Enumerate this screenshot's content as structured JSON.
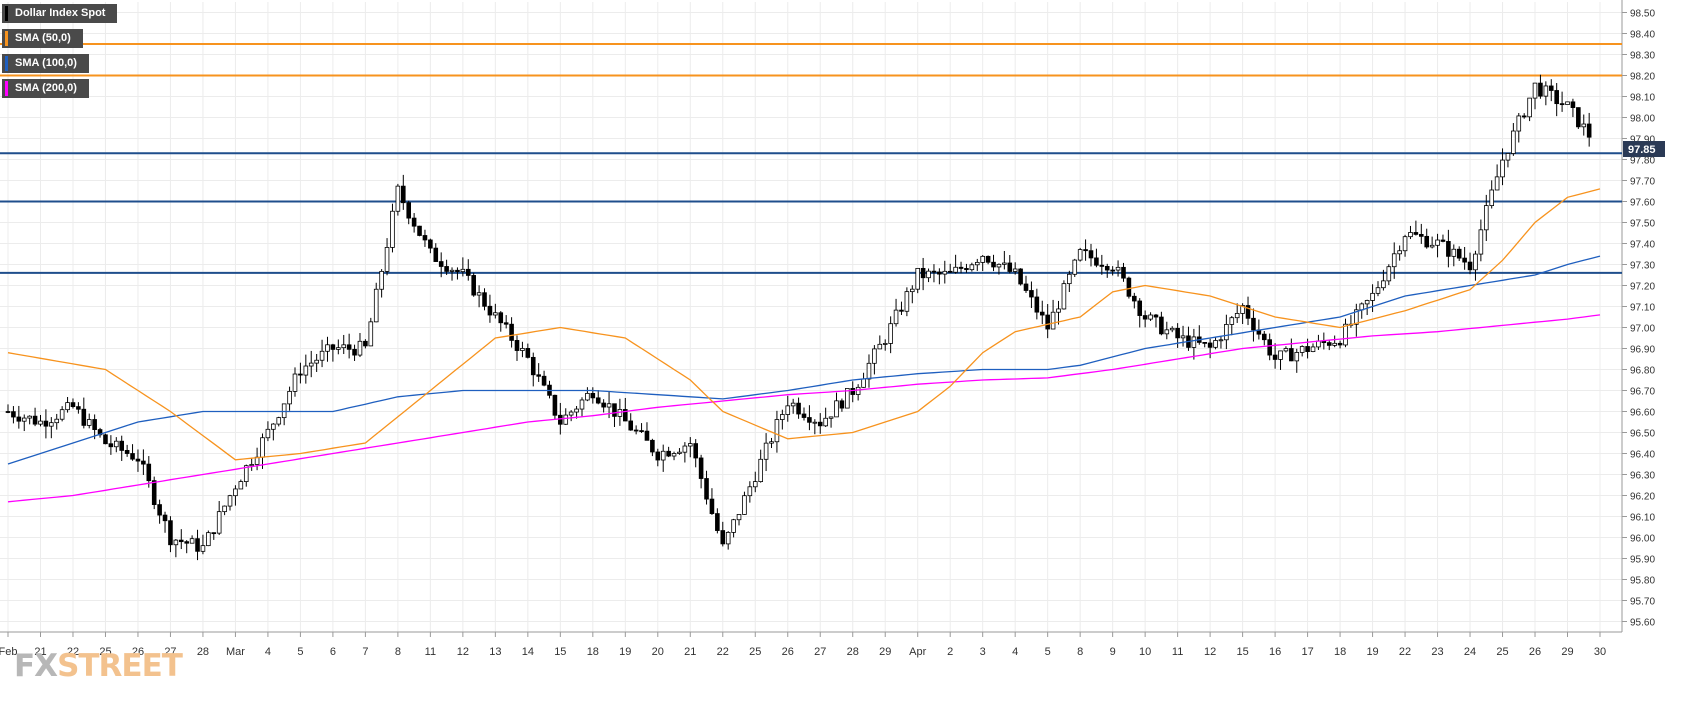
{
  "legend": [
    {
      "label": "Dollar Index Spot",
      "color": "#000000"
    },
    {
      "label": "SMA (50,0)",
      "color": "#f7931e"
    },
    {
      "label": "SMA (100,0)",
      "color": "#1f5fbf"
    },
    {
      "label": "SMA (200,0)",
      "color": "#ff00ff"
    }
  ],
  "logo": {
    "part1": "FX",
    "part2": "STREET"
  },
  "chart_data": {
    "type": "candlestick",
    "title": "Dollar Index Spot",
    "ylim": [
      95.55,
      98.55
    ],
    "y_ticks": [
      "95.60",
      "95.70",
      "95.80",
      "95.90",
      "96.00",
      "96.10",
      "96.20",
      "96.30",
      "96.40",
      "96.50",
      "96.60",
      "96.70",
      "96.80",
      "96.90",
      "97.00",
      "97.10",
      "97.20",
      "97.30",
      "97.40",
      "97.50",
      "97.60",
      "97.70",
      "97.80",
      "97.90",
      "98.00",
      "98.10",
      "98.20",
      "98.30",
      "98.40",
      "98.50"
    ],
    "x_labels": [
      "Feb",
      "21",
      "22",
      "25",
      "26",
      "27",
      "28",
      "Mar",
      "4",
      "5",
      "6",
      "7",
      "8",
      "11",
      "12",
      "13",
      "14",
      "15",
      "18",
      "19",
      "20",
      "21",
      "22",
      "25",
      "26",
      "27",
      "28",
      "29",
      "Apr",
      "2",
      "3",
      "4",
      "5",
      "8",
      "9",
      "10",
      "11",
      "12",
      "15",
      "16",
      "17",
      "18",
      "19",
      "22",
      "23",
      "24",
      "25",
      "26",
      "29",
      "30"
    ],
    "last_price": "97.85",
    "horizontal_levels": [
      {
        "value": 98.35,
        "color": "#f7931e"
      },
      {
        "value": 98.2,
        "color": "#f7931e"
      },
      {
        "value": 97.83,
        "color": "#1f4e8c"
      },
      {
        "value": 97.6,
        "color": "#1f4e8c"
      },
      {
        "value": 97.26,
        "color": "#1f4e8c"
      }
    ],
    "close_anchors": [
      [
        0,
        96.6
      ],
      [
        1,
        96.55
      ],
      [
        2,
        96.62
      ],
      [
        3,
        96.45
      ],
      [
        4,
        96.38
      ],
      [
        5,
        96.0
      ],
      [
        6,
        95.95
      ],
      [
        7,
        96.25
      ],
      [
        8,
        96.5
      ],
      [
        9,
        96.8
      ],
      [
        10,
        96.9
      ],
      [
        11,
        96.9
      ],
      [
        12,
        97.65
      ],
      [
        13,
        97.35
      ],
      [
        14,
        97.25
      ],
      [
        15,
        97.05
      ],
      [
        16,
        96.85
      ],
      [
        17,
        96.55
      ],
      [
        18,
        96.7
      ],
      [
        19,
        96.55
      ],
      [
        20,
        96.4
      ],
      [
        21,
        96.45
      ],
      [
        22,
        95.95
      ],
      [
        23,
        96.3
      ],
      [
        24,
        96.65
      ],
      [
        25,
        96.55
      ],
      [
        26,
        96.7
      ],
      [
        27,
        96.95
      ],
      [
        28,
        97.25
      ],
      [
        29,
        97.25
      ],
      [
        30,
        97.35
      ],
      [
        31,
        97.25
      ],
      [
        32,
        97.0
      ],
      [
        33,
        97.35
      ],
      [
        34,
        97.3
      ],
      [
        35,
        97.05
      ],
      [
        36,
        96.95
      ],
      [
        37,
        96.9
      ],
      [
        38,
        97.1
      ],
      [
        39,
        96.85
      ],
      [
        40,
        96.9
      ],
      [
        41,
        96.95
      ],
      [
        42,
        97.15
      ],
      [
        43,
        97.45
      ],
      [
        44,
        97.4
      ],
      [
        45,
        97.3
      ],
      [
        46,
        97.8
      ],
      [
        47,
        98.15
      ],
      [
        48,
        98.05
      ],
      [
        49,
        97.85
      ]
    ],
    "sma_50": [
      [
        0,
        96.88
      ],
      [
        3,
        96.8
      ],
      [
        5,
        96.6
      ],
      [
        7,
        96.37
      ],
      [
        9,
        96.4
      ],
      [
        11,
        96.45
      ],
      [
        13,
        96.7
      ],
      [
        15,
        96.95
      ],
      [
        17,
        97.0
      ],
      [
        19,
        96.95
      ],
      [
        21,
        96.75
      ],
      [
        22,
        96.6
      ],
      [
        24,
        96.47
      ],
      [
        26,
        96.5
      ],
      [
        28,
        96.6
      ],
      [
        29,
        96.72
      ],
      [
        30,
        96.88
      ],
      [
        31,
        96.98
      ],
      [
        33,
        97.05
      ],
      [
        34,
        97.17
      ],
      [
        35,
        97.2
      ],
      [
        37,
        97.15
      ],
      [
        39,
        97.05
      ],
      [
        41,
        97.0
      ],
      [
        43,
        97.08
      ],
      [
        45,
        97.18
      ],
      [
        46,
        97.32
      ],
      [
        47,
        97.5
      ],
      [
        48,
        97.62
      ],
      [
        49,
        97.66
      ]
    ],
    "sma_100": [
      [
        0,
        96.35
      ],
      [
        2,
        96.45
      ],
      [
        4,
        96.55
      ],
      [
        6,
        96.6
      ],
      [
        8,
        96.6
      ],
      [
        10,
        96.6
      ],
      [
        12,
        96.67
      ],
      [
        14,
        96.7
      ],
      [
        16,
        96.7
      ],
      [
        18,
        96.7
      ],
      [
        20,
        96.68
      ],
      [
        22,
        96.66
      ],
      [
        24,
        96.7
      ],
      [
        26,
        96.75
      ],
      [
        28,
        96.78
      ],
      [
        30,
        96.8
      ],
      [
        32,
        96.8
      ],
      [
        33,
        96.82
      ],
      [
        35,
        96.9
      ],
      [
        37,
        96.95
      ],
      [
        39,
        97.0
      ],
      [
        41,
        97.05
      ],
      [
        43,
        97.15
      ],
      [
        45,
        97.2
      ],
      [
        47,
        97.25
      ],
      [
        48,
        97.3
      ],
      [
        49,
        97.34
      ]
    ],
    "sma_200": [
      [
        0,
        96.17
      ],
      [
        2,
        96.2
      ],
      [
        4,
        96.25
      ],
      [
        6,
        96.3
      ],
      [
        8,
        96.35
      ],
      [
        10,
        96.4
      ],
      [
        12,
        96.45
      ],
      [
        14,
        96.5
      ],
      [
        16,
        96.55
      ],
      [
        18,
        96.58
      ],
      [
        20,
        96.62
      ],
      [
        22,
        96.65
      ],
      [
        24,
        96.68
      ],
      [
        26,
        96.7
      ],
      [
        28,
        96.73
      ],
      [
        30,
        96.75
      ],
      [
        32,
        96.76
      ],
      [
        34,
        96.8
      ],
      [
        36,
        96.85
      ],
      [
        38,
        96.9
      ],
      [
        40,
        96.93
      ],
      [
        42,
        96.96
      ],
      [
        44,
        96.98
      ],
      [
        46,
        97.01
      ],
      [
        48,
        97.04
      ],
      [
        49,
        97.06
      ]
    ],
    "grid": true,
    "legend_position": "top-left"
  }
}
